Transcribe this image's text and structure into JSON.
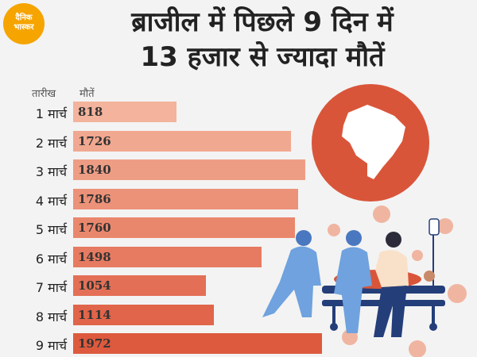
{
  "brand": {
    "logo_text": "दैनिक\nभास्कर",
    "logo_color": "#f5a400"
  },
  "title": "ब्राजील में पिछले 9 दिन में\n13 हजार से ज्यादा मौतें",
  "colors": {
    "background": "#f3f3f3",
    "bar_start": "#f4b39c",
    "bar_end": "#dd5a3e",
    "map_circle": "#d9553a"
  },
  "chart_data": {
    "type": "bar",
    "orientation": "horizontal",
    "category_header": "तारीख",
    "value_header": "मौतें",
    "categories": [
      "1 मार्च",
      "2 मार्च",
      "3 मार्च",
      "4 मार्च",
      "5 मार्च",
      "6 मार्च",
      "7 मार्च",
      "8 मार्च",
      "9 मार्च"
    ],
    "values": [
      818,
      1726,
      1840,
      1786,
      1760,
      1498,
      1054,
      1114,
      1972
    ],
    "xlim": [
      0,
      2000
    ]
  },
  "illustration": {
    "icons": [
      "brazil-map-icon",
      "medical-staff-stretcher-icon",
      "virus-icon"
    ]
  }
}
